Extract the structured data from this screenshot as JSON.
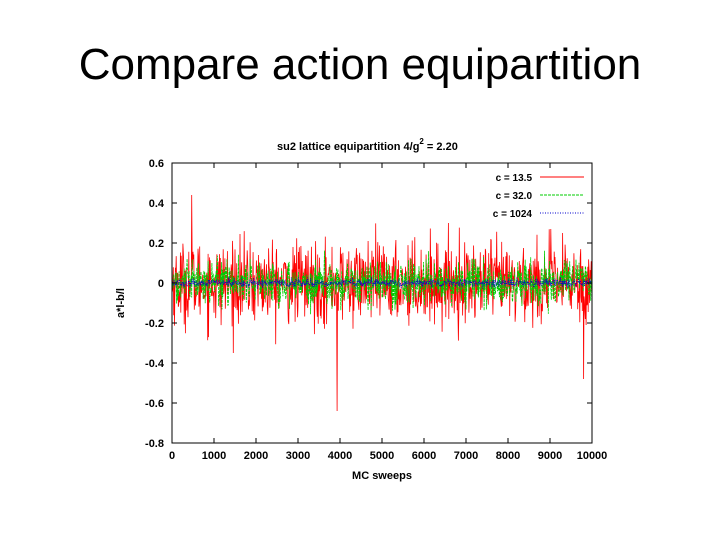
{
  "slide": {
    "title": "Compare action equipartition"
  },
  "chart_data": {
    "type": "line",
    "title": "su2 lattice equipartition 4/g",
    "title_superscript": "2",
    "title_suffix": " = 2.20",
    "xlabel": "MC sweeps",
    "ylabel": "a*l-b/l",
    "xlim": [
      0,
      10000
    ],
    "ylim": [
      -0.8,
      0.6
    ],
    "x_ticks": [
      0,
      1000,
      2000,
      3000,
      4000,
      5000,
      6000,
      7000,
      8000,
      9000,
      10000
    ],
    "y_ticks": [
      -0.8,
      -0.6,
      -0.4,
      -0.2,
      0,
      0.2,
      0.4,
      0.6
    ],
    "y_tick_labels": [
      "-0.8",
      "-0.6",
      "-0.4",
      "-0.2",
      "0",
      "0.2",
      "0.4",
      "0.6"
    ],
    "grid": false,
    "legend_position": "top-right",
    "series": [
      {
        "name": "c = 13.5",
        "color": "#ff0000",
        "line_style": "solid",
        "sweeps": 10000,
        "approx_std": 0.1,
        "approx_range": [
          -0.64,
          0.45
        ],
        "notable_points": [
          [
            3930,
            -0.64
          ],
          [
            470,
            0.44
          ],
          [
            9800,
            -0.48
          ]
        ]
      },
      {
        "name": "c = 32.0",
        "color": "#00cc00",
        "line_style": "dashed",
        "sweeps": 10000,
        "approx_std": 0.055,
        "approx_range": [
          -0.2,
          0.2
        ]
      },
      {
        "name": "c = 1024",
        "color": "#0000cc",
        "line_style": "dotted",
        "sweeps": 10000,
        "approx_std": 0.01,
        "approx_range": [
          -0.03,
          0.03
        ]
      }
    ]
  }
}
